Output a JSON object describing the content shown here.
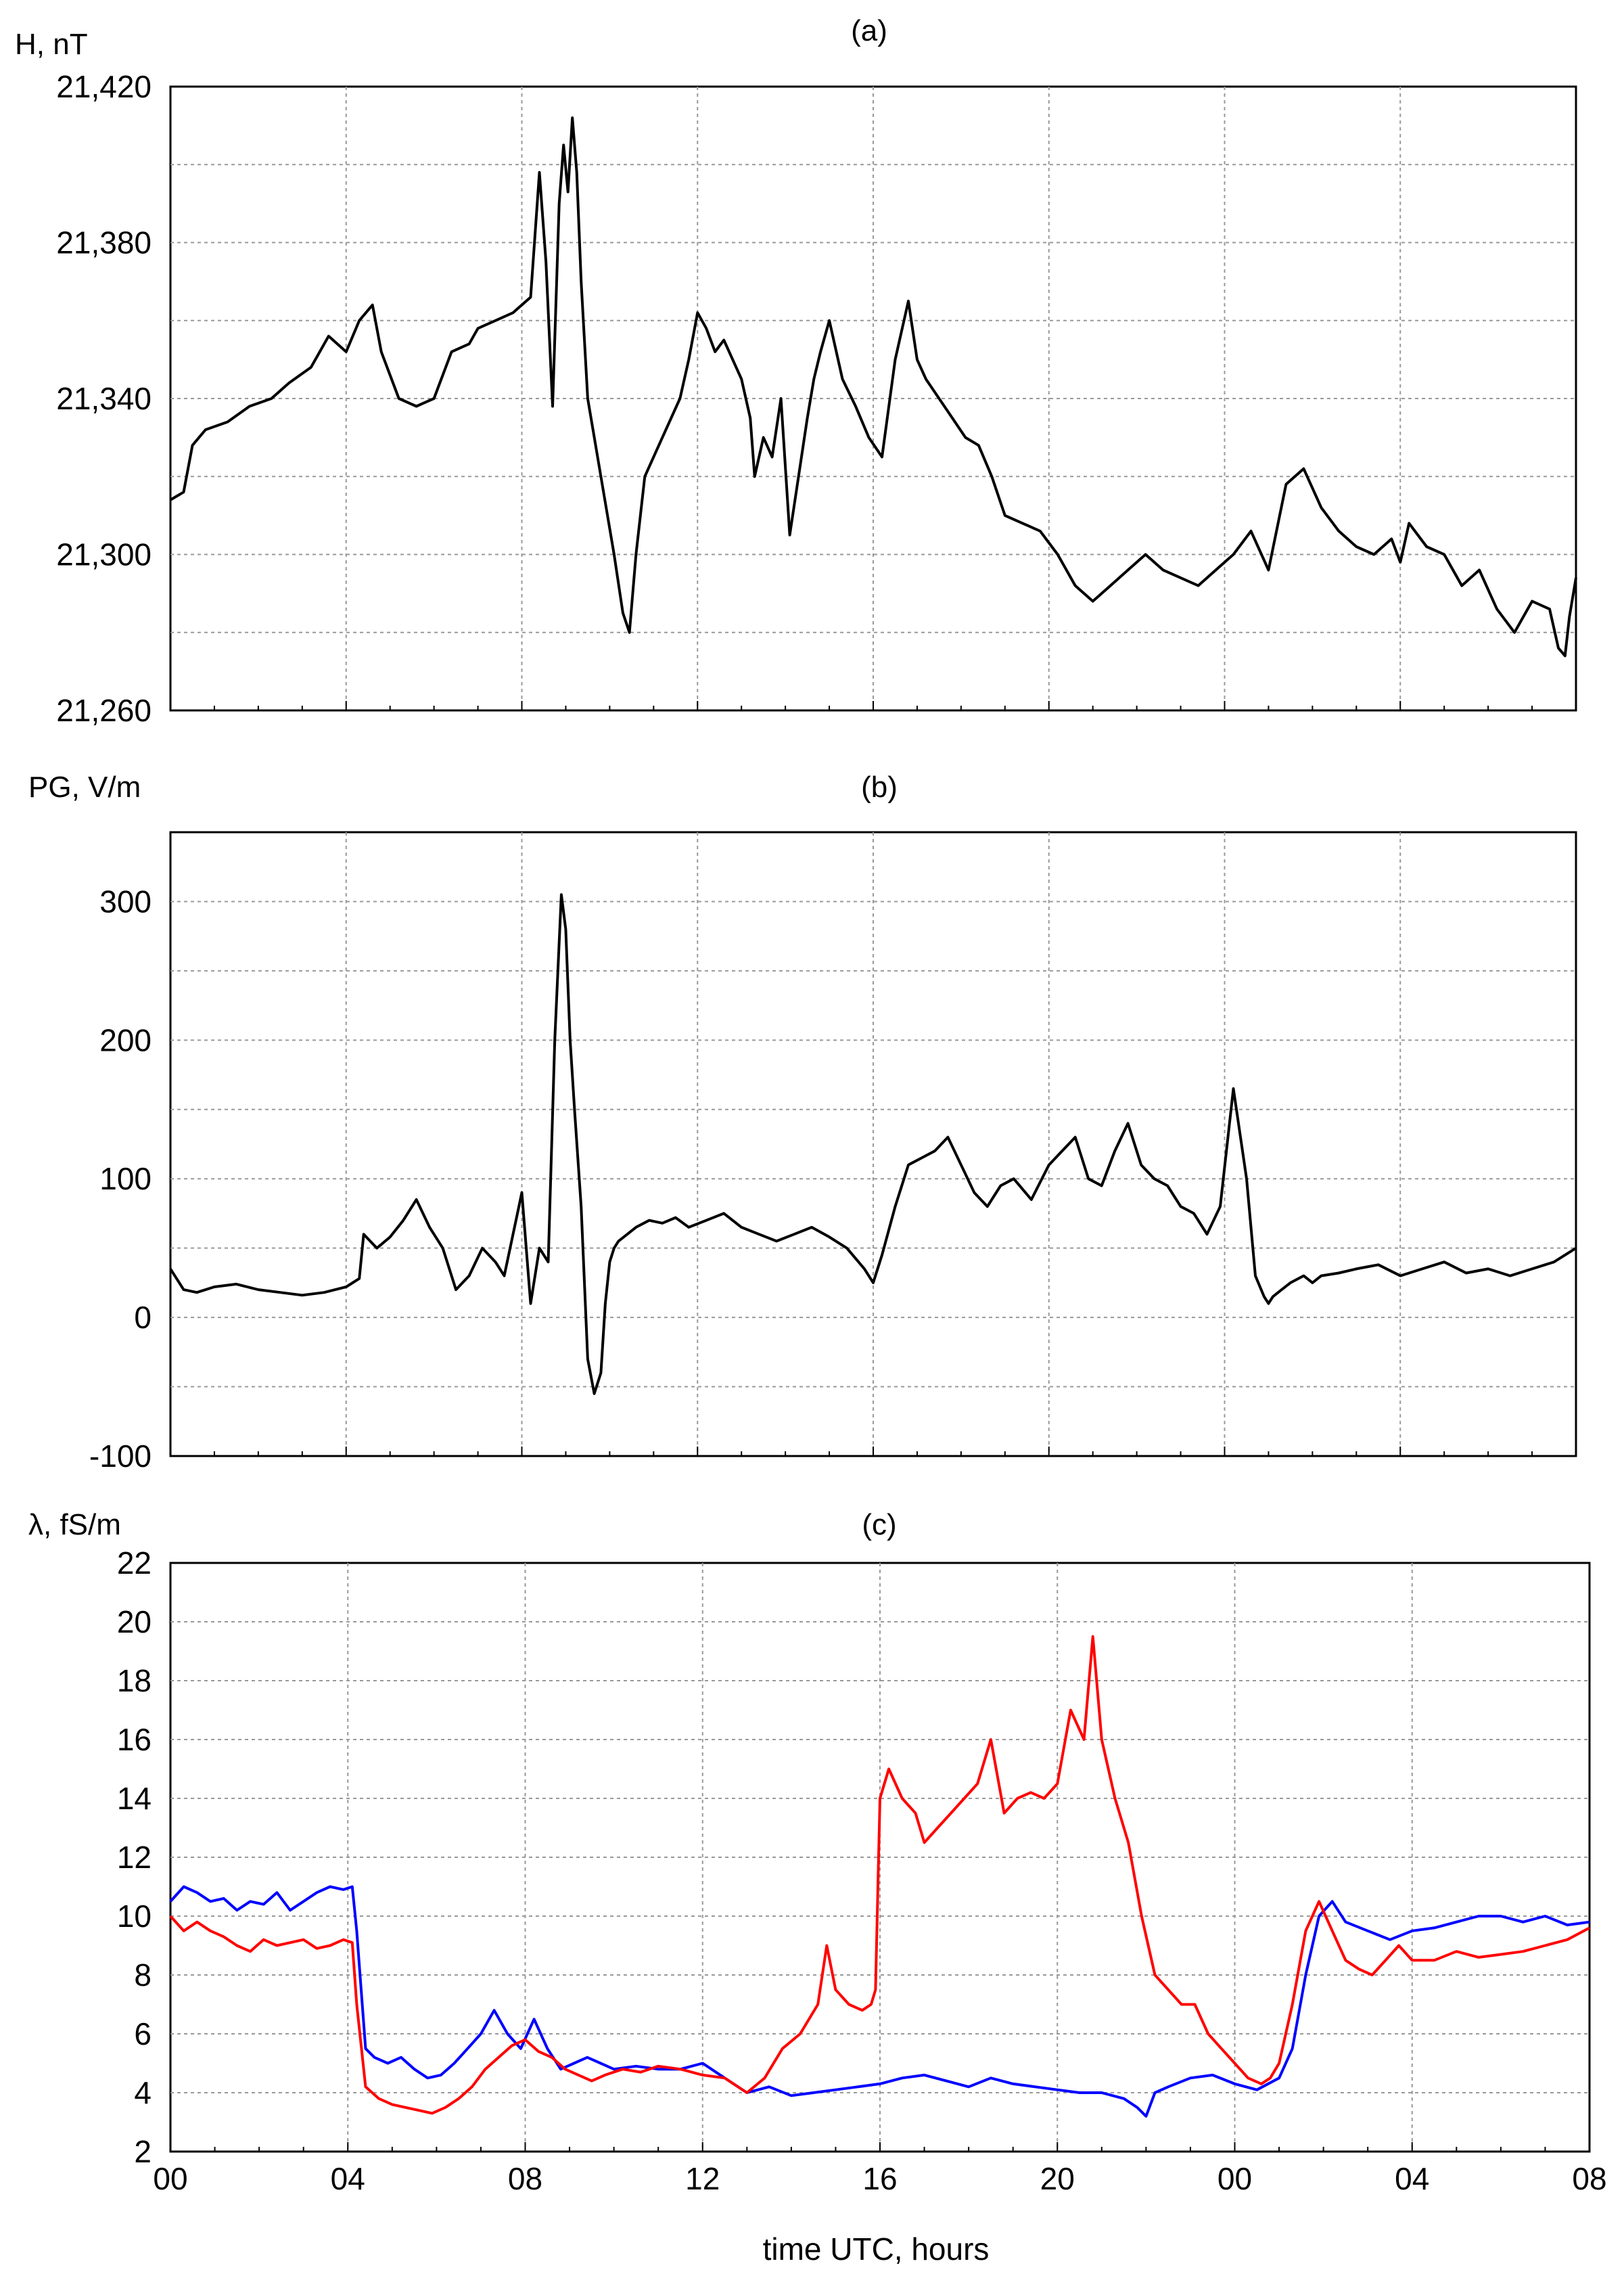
{
  "chart_data": [
    {
      "panel_label": "(a)",
      "type": "line",
      "ylabel": "H, nT",
      "ylim": [
        21260,
        21420
      ],
      "yticks": [
        "21,260",
        "21,300",
        "21,340",
        "21,380",
        "21,420"
      ],
      "xlim": [
        0,
        32
      ],
      "grid": true,
      "series": [
        {
          "color": "#000000",
          "x": [
            0,
            0.3,
            0.5,
            0.8,
            1.3,
            1.8,
            2.3,
            2.7,
            3.2,
            3.6,
            4.0,
            4.3,
            4.6,
            4.8,
            5.2,
            5.6,
            6.0,
            6.4,
            6.8,
            7.0,
            7.4,
            7.8,
            8.2,
            8.4,
            8.55,
            8.7,
            8.85,
            8.95,
            9.05,
            9.15,
            9.25,
            9.35,
            9.5,
            9.8,
            10.1,
            10.3,
            10.45,
            10.6,
            10.8,
            11.2,
            11.6,
            11.8,
            12.0,
            12.2,
            12.4,
            12.6,
            13.0,
            13.2,
            13.3,
            13.5,
            13.7,
            13.9,
            14.1,
            14.3,
            14.5,
            14.65,
            14.8,
            15.0,
            15.3,
            15.6,
            15.9,
            16.2,
            16.5,
            16.8,
            17.0,
            17.2,
            17.5,
            17.8,
            18.1,
            18.4,
            18.7,
            19.0,
            19.4,
            19.8,
            20.2,
            20.6,
            21.0,
            21.4,
            21.8,
            22.2,
            22.6,
            23.0,
            23.4,
            23.8,
            24.2,
            24.6,
            25.0,
            25.4,
            25.8,
            26.2,
            26.6,
            27.0,
            27.4,
            27.8,
            28.0,
            28.2,
            28.6,
            29.0,
            29.4,
            29.8,
            30.2,
            30.6,
            31.0,
            31.4,
            31.6,
            31.75,
            31.85,
            32.0
          ],
          "y": [
            21314,
            21316,
            21328,
            21332,
            21334,
            21338,
            21340,
            21344,
            21348,
            21356,
            21352,
            21360,
            21364,
            21352,
            21340,
            21338,
            21340,
            21352,
            21354,
            21358,
            21360,
            21362,
            21366,
            21398,
            21375,
            21338,
            21390,
            21405,
            21393,
            21412,
            21398,
            21370,
            21340,
            21320,
            21300,
            21285,
            21280,
            21300,
            21320,
            21330,
            21340,
            21350,
            21362,
            21358,
            21352,
            21355,
            21345,
            21335,
            21320,
            21330,
            21325,
            21340,
            21305,
            21320,
            21335,
            21345,
            21352,
            21360,
            21345,
            21338,
            21330,
            21325,
            21350,
            21365,
            21350,
            21345,
            21340,
            21335,
            21330,
            21328,
            21320,
            21310,
            21308,
            21306,
            21300,
            21292,
            21288,
            21292,
            21296,
            21300,
            21296,
            21294,
            21292,
            21296,
            21300,
            21306,
            21296,
            21318,
            21322,
            21312,
            21306,
            21302,
            21300,
            21304,
            21298,
            21308,
            21302,
            21300,
            21292,
            21296,
            21286,
            21280,
            21288,
            21286,
            21276,
            21274,
            21284,
            21294
          ]
        }
      ]
    },
    {
      "panel_label": "(b)",
      "type": "line",
      "ylabel": "PG, V/m",
      "ylim": [
        -100,
        350
      ],
      "yticks": [
        "-100",
        "0",
        "100",
        "200",
        "300"
      ],
      "xlim": [
        0,
        32
      ],
      "grid": true,
      "series": [
        {
          "color": "#000000",
          "x": [
            0,
            0.3,
            0.6,
            1.0,
            1.5,
            2.0,
            2.5,
            3.0,
            3.5,
            4.0,
            4.3,
            4.4,
            4.7,
            5.0,
            5.3,
            5.6,
            5.9,
            6.2,
            6.5,
            6.8,
            7.1,
            7.4,
            7.6,
            7.8,
            8.0,
            8.2,
            8.4,
            8.6,
            8.75,
            8.9,
            9.0,
            9.1,
            9.2,
            9.35,
            9.5,
            9.65,
            9.8,
            9.9,
            10.0,
            10.1,
            10.2,
            10.4,
            10.6,
            10.9,
            11.2,
            11.5,
            11.8,
            12.2,
            12.6,
            13.0,
            13.4,
            13.8,
            14.2,
            14.6,
            15.0,
            15.4,
            15.8,
            16.0,
            16.2,
            16.5,
            16.8,
            17.1,
            17.4,
            17.7,
            18.0,
            18.3,
            18.6,
            18.9,
            19.2,
            19.6,
            20.0,
            20.3,
            20.6,
            20.9,
            21.2,
            21.5,
            21.8,
            22.1,
            22.4,
            22.7,
            23.0,
            23.3,
            23.6,
            23.9,
            24.2,
            24.5,
            24.7,
            24.9,
            25.0,
            25.1,
            25.3,
            25.5,
            25.8,
            26.0,
            26.2,
            26.6,
            27.0,
            27.5,
            28.0,
            28.5,
            29.0,
            29.5,
            30.0,
            30.5,
            31.0,
            31.5,
            32.0
          ],
          "y": [
            35,
            20,
            18,
            22,
            24,
            20,
            18,
            16,
            18,
            22,
            28,
            60,
            50,
            58,
            70,
            85,
            65,
            50,
            20,
            30,
            50,
            40,
            30,
            60,
            90,
            10,
            50,
            40,
            200,
            305,
            280,
            200,
            150,
            80,
            -30,
            -55,
            -40,
            10,
            40,
            50,
            55,
            60,
            65,
            70,
            68,
            72,
            65,
            70,
            75,
            65,
            60,
            55,
            60,
            65,
            58,
            50,
            35,
            25,
            45,
            80,
            110,
            115,
            120,
            130,
            110,
            90,
            80,
            95,
            100,
            85,
            110,
            120,
            130,
            100,
            95,
            120,
            140,
            110,
            100,
            95,
            80,
            75,
            60,
            80,
            165,
            100,
            30,
            15,
            10,
            15,
            20,
            25,
            30,
            25,
            30,
            32,
            35,
            38,
            30,
            35,
            40,
            32,
            35,
            30,
            35,
            40,
            50
          ]
        }
      ]
    },
    {
      "panel_label": "(c)",
      "type": "line",
      "ylabel": "λ, fS/m",
      "xlabel": "time UTC, hours",
      "ylim": [
        2,
        22
      ],
      "yticks": [
        "2",
        "4",
        "6",
        "8",
        "10",
        "12",
        "14",
        "16",
        "18",
        "20",
        "22"
      ],
      "xlim": [
        0,
        32
      ],
      "xticks": [
        "00",
        "04",
        "08",
        "12",
        "16",
        "20",
        "00",
        "04",
        "08"
      ],
      "grid": true,
      "series": [
        {
          "color": "#0000ff",
          "x": [
            0,
            0.3,
            0.6,
            0.9,
            1.2,
            1.5,
            1.8,
            2.1,
            2.4,
            2.7,
            3.0,
            3.3,
            3.6,
            3.9,
            4.1,
            4.2,
            4.4,
            4.6,
            4.9,
            5.2,
            5.5,
            5.8,
            6.1,
            6.4,
            6.7,
            7.0,
            7.3,
            7.6,
            7.9,
            8.2,
            8.5,
            8.8,
            9.1,
            9.4,
            9.7,
            10.0,
            10.5,
            11.0,
            11.5,
            12.0,
            12.5,
            13.0,
            13.5,
            14.0,
            14.5,
            15.0,
            15.5,
            16.0,
            16.5,
            17.0,
            17.5,
            18.0,
            18.5,
            19.0,
            19.5,
            20.0,
            20.5,
            21.0,
            21.5,
            21.8,
            22.0,
            22.2,
            22.5,
            23.0,
            23.5,
            24.0,
            24.5,
            25.0,
            25.3,
            25.6,
            25.9,
            26.2,
            26.5,
            27.0,
            27.5,
            28.0,
            28.5,
            29.0,
            29.5,
            30.0,
            30.5,
            31.0,
            31.5,
            32.0
          ],
          "y": [
            10.5,
            11,
            10.8,
            10.5,
            10.6,
            10.2,
            10.5,
            10.4,
            10.8,
            10.2,
            10.5,
            10.8,
            11,
            10.9,
            11,
            9.5,
            5.5,
            5.2,
            5,
            5.2,
            4.8,
            4.5,
            4.6,
            5,
            5.5,
            6,
            6.8,
            6,
            5.5,
            6.5,
            5.5,
            4.8,
            5,
            5.2,
            5,
            4.8,
            4.9,
            4.8,
            4.8,
            5,
            4.5,
            4,
            4.2,
            3.9,
            4,
            4.1,
            4.2,
            4.3,
            4.5,
            4.6,
            4.4,
            4.2,
            4.5,
            4.3,
            4.2,
            4.1,
            4,
            4,
            3.8,
            3.5,
            3.2,
            4,
            4.2,
            4.5,
            4.6,
            4.3,
            4.1,
            4.5,
            5.5,
            8,
            10,
            10.5,
            9.8,
            9.5,
            9.2,
            9.5,
            9.6,
            9.8,
            10,
            10,
            9.8,
            10,
            9.7,
            9.8
          ]
        },
        {
          "color": "#ff0000",
          "x": [
            0,
            0.3,
            0.6,
            0.9,
            1.2,
            1.5,
            1.8,
            2.1,
            2.4,
            2.7,
            3.0,
            3.3,
            3.6,
            3.9,
            4.1,
            4.2,
            4.4,
            4.7,
            5.0,
            5.3,
            5.6,
            5.9,
            6.2,
            6.5,
            6.8,
            7.1,
            7.4,
            7.7,
            8.0,
            8.3,
            8.6,
            8.9,
            9.2,
            9.5,
            9.8,
            10.2,
            10.6,
            11.0,
            11.5,
            12.0,
            12.5,
            13.0,
            13.4,
            13.8,
            14.2,
            14.6,
            14.8,
            15.0,
            15.3,
            15.6,
            15.8,
            15.9,
            16.0,
            16.2,
            16.5,
            16.8,
            17.0,
            17.3,
            17.6,
            17.9,
            18.2,
            18.5,
            18.8,
            19.1,
            19.4,
            19.7,
            20.0,
            20.3,
            20.6,
            20.8,
            21.0,
            21.3,
            21.6,
            21.9,
            22.2,
            22.5,
            22.8,
            23.1,
            23.4,
            23.7,
            24.0,
            24.3,
            24.6,
            24.8,
            25.0,
            25.3,
            25.6,
            25.9,
            26.2,
            26.5,
            26.8,
            27.1,
            27.4,
            27.7,
            28.0,
            28.5,
            29.0,
            29.5,
            30.0,
            30.5,
            31.0,
            31.5,
            32.0
          ],
          "y": [
            10,
            9.5,
            9.8,
            9.5,
            9.3,
            9,
            8.8,
            9.2,
            9,
            9.1,
            9.2,
            8.9,
            9,
            9.2,
            9.1,
            7,
            4.2,
            3.8,
            3.6,
            3.5,
            3.4,
            3.3,
            3.5,
            3.8,
            4.2,
            4.8,
            5.2,
            5.6,
            5.8,
            5.4,
            5.2,
            4.8,
            4.6,
            4.4,
            4.6,
            4.8,
            4.7,
            4.9,
            4.8,
            4.6,
            4.5,
            4,
            4.5,
            5.5,
            6,
            7,
            9,
            7.5,
            7,
            6.8,
            7,
            7.5,
            14,
            15,
            14,
            13.5,
            12.5,
            13,
            13.5,
            14,
            14.5,
            16,
            13.5,
            14,
            14.2,
            14,
            14.5,
            17,
            16,
            19.5,
            16,
            14,
            12.5,
            10,
            8,
            7.5,
            7,
            7,
            6,
            5.5,
            5,
            4.5,
            4.3,
            4.5,
            5,
            7,
            9.5,
            10.5,
            9.5,
            8.5,
            8.2,
            8,
            8.5,
            9,
            8.5,
            8.5,
            8.8,
            8.6,
            8.7,
            8.8,
            9,
            9.2,
            9.6
          ]
        }
      ]
    }
  ]
}
